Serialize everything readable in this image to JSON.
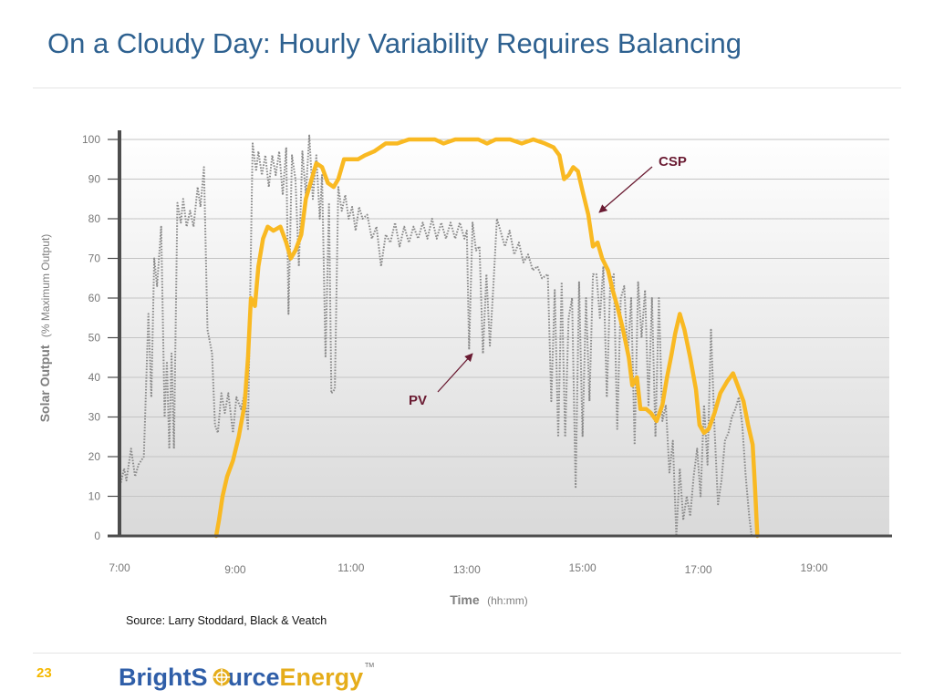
{
  "slide": {
    "title": "On a Cloudy Day: Hourly Variability Requires Balancing",
    "source_note": "Source: Larry Stoddard, Black & Veatch",
    "page_number": "23"
  },
  "logo": {
    "word_1": "BrightS",
    "word_1_b": "urce",
    "word_2": "Energy",
    "trademark": "TM",
    "color_blue": "#2f5ea8",
    "color_gold": "#e5ad1b"
  },
  "chart_data": {
    "type": "line",
    "title": "",
    "ylabel": "Solar Output",
    "ylabel_sub": "(% Maximum Output)",
    "xlabel": "Time",
    "xlabel_sub": "(hh:mm)",
    "xlim": [
      7,
      20.3
    ],
    "ylim": [
      0,
      100
    ],
    "yticks": [
      0,
      10,
      20,
      30,
      40,
      50,
      60,
      70,
      80,
      90,
      100
    ],
    "xticks": [
      {
        "value": 7,
        "label": "7:00"
      },
      {
        "value": 9,
        "label": "9:00"
      },
      {
        "value": 11,
        "label": "11:00"
      },
      {
        "value": 13,
        "label": "13:00"
      },
      {
        "value": 15,
        "label": "15:00"
      },
      {
        "value": 17,
        "label": "17:00"
      },
      {
        "value": 19,
        "label": "19:00"
      }
    ],
    "grid": true,
    "series": [
      {
        "name": "PV",
        "color": "#8a8a8a",
        "style": "dotted",
        "points": [
          [
            7.0,
            12
          ],
          [
            7.08,
            17
          ],
          [
            7.12,
            14
          ],
          [
            7.2,
            22
          ],
          [
            7.27,
            15
          ],
          [
            7.33,
            18
          ],
          [
            7.42,
            20
          ],
          [
            7.5,
            56
          ],
          [
            7.55,
            35
          ],
          [
            7.6,
            70
          ],
          [
            7.65,
            63
          ],
          [
            7.72,
            78
          ],
          [
            7.78,
            30
          ],
          [
            7.82,
            44
          ],
          [
            7.86,
            22
          ],
          [
            7.9,
            46
          ],
          [
            7.94,
            22
          ],
          [
            8.0,
            84
          ],
          [
            8.06,
            79
          ],
          [
            8.1,
            85
          ],
          [
            8.16,
            78
          ],
          [
            8.22,
            82
          ],
          [
            8.28,
            78
          ],
          [
            8.35,
            88
          ],
          [
            8.4,
            83
          ],
          [
            8.46,
            93
          ],
          [
            8.52,
            52
          ],
          [
            8.6,
            46
          ],
          [
            8.65,
            28
          ],
          [
            8.7,
            26
          ],
          [
            8.76,
            36
          ],
          [
            8.82,
            31
          ],
          [
            8.88,
            36
          ],
          [
            8.96,
            26
          ],
          [
            9.02,
            35
          ],
          [
            9.1,
            32
          ],
          [
            9.16,
            36
          ],
          [
            9.22,
            27
          ],
          [
            9.3,
            99
          ],
          [
            9.36,
            92
          ],
          [
            9.4,
            97
          ],
          [
            9.46,
            91
          ],
          [
            9.52,
            96
          ],
          [
            9.58,
            88
          ],
          [
            9.64,
            96
          ],
          [
            9.7,
            91
          ],
          [
            9.76,
            97
          ],
          [
            9.82,
            86
          ],
          [
            9.88,
            98
          ],
          [
            9.92,
            56
          ],
          [
            9.98,
            96
          ],
          [
            10.04,
            90
          ],
          [
            10.1,
            68
          ],
          [
            10.16,
            97
          ],
          [
            10.22,
            86
          ],
          [
            10.28,
            101
          ],
          [
            10.34,
            85
          ],
          [
            10.4,
            96
          ],
          [
            10.46,
            80
          ],
          [
            10.5,
            91
          ],
          [
            10.56,
            45
          ],
          [
            10.62,
            84
          ],
          [
            10.66,
            36
          ],
          [
            10.72,
            37
          ],
          [
            10.78,
            88
          ],
          [
            10.84,
            82
          ],
          [
            10.9,
            86
          ],
          [
            10.96,
            80
          ],
          [
            11.02,
            83
          ],
          [
            11.08,
            77
          ],
          [
            11.14,
            83
          ],
          [
            11.2,
            80
          ],
          [
            11.28,
            81
          ],
          [
            11.36,
            75
          ],
          [
            11.44,
            78
          ],
          [
            11.52,
            68
          ],
          [
            11.6,
            76
          ],
          [
            11.68,
            74
          ],
          [
            11.76,
            79
          ],
          [
            11.84,
            73
          ],
          [
            11.92,
            78
          ],
          [
            12.0,
            74
          ],
          [
            12.08,
            78
          ],
          [
            12.16,
            75
          ],
          [
            12.24,
            79
          ],
          [
            12.32,
            75
          ],
          [
            12.4,
            80
          ],
          [
            12.48,
            75
          ],
          [
            12.56,
            79
          ],
          [
            12.64,
            75
          ],
          [
            12.72,
            79
          ],
          [
            12.8,
            75
          ],
          [
            12.88,
            79
          ],
          [
            12.96,
            75
          ],
          [
            13.0,
            77
          ],
          [
            13.04,
            47
          ],
          [
            13.1,
            79
          ],
          [
            13.16,
            72
          ],
          [
            13.22,
            73
          ],
          [
            13.28,
            46
          ],
          [
            13.34,
            66
          ],
          [
            13.4,
            48
          ],
          [
            13.46,
            63
          ],
          [
            13.52,
            80
          ],
          [
            13.58,
            77
          ],
          [
            13.66,
            73
          ],
          [
            13.74,
            77
          ],
          [
            13.82,
            71
          ],
          [
            13.9,
            74
          ],
          [
            13.98,
            69
          ],
          [
            14.06,
            71
          ],
          [
            14.14,
            67
          ],
          [
            14.22,
            68
          ],
          [
            14.3,
            65
          ],
          [
            14.4,
            66
          ],
          [
            14.46,
            34
          ],
          [
            14.52,
            62
          ],
          [
            14.58,
            25
          ],
          [
            14.64,
            64
          ],
          [
            14.7,
            25
          ],
          [
            14.76,
            55
          ],
          [
            14.82,
            60
          ],
          [
            14.88,
            12
          ],
          [
            14.94,
            64
          ],
          [
            15.0,
            25
          ],
          [
            15.06,
            60
          ],
          [
            15.12,
            34
          ],
          [
            15.18,
            66
          ],
          [
            15.24,
            66
          ],
          [
            15.3,
            55
          ],
          [
            15.36,
            68
          ],
          [
            15.42,
            35
          ],
          [
            15.48,
            64
          ],
          [
            15.54,
            66
          ],
          [
            15.6,
            27
          ],
          [
            15.66,
            60
          ],
          [
            15.72,
            63
          ],
          [
            15.78,
            45
          ],
          [
            15.84,
            60
          ],
          [
            15.9,
            23
          ],
          [
            15.96,
            64
          ],
          [
            16.02,
            50
          ],
          [
            16.08,
            62
          ],
          [
            16.14,
            33
          ],
          [
            16.2,
            60
          ],
          [
            16.26,
            25
          ],
          [
            16.32,
            60
          ],
          [
            16.38,
            29
          ],
          [
            16.44,
            33
          ],
          [
            16.5,
            16
          ],
          [
            16.56,
            24
          ],
          [
            16.62,
            0
          ],
          [
            16.68,
            17
          ],
          [
            16.74,
            4
          ],
          [
            16.8,
            10
          ],
          [
            16.86,
            5
          ],
          [
            16.92,
            15
          ],
          [
            16.98,
            22
          ],
          [
            17.04,
            10
          ],
          [
            17.1,
            33
          ],
          [
            17.16,
            18
          ],
          [
            17.22,
            52
          ],
          [
            17.28,
            27
          ],
          [
            17.34,
            8
          ],
          [
            17.4,
            14
          ],
          [
            17.46,
            24
          ],
          [
            17.52,
            26
          ],
          [
            17.58,
            30
          ],
          [
            17.64,
            32
          ],
          [
            17.7,
            35
          ],
          [
            17.76,
            28
          ],
          [
            17.82,
            15
          ],
          [
            17.88,
            5
          ],
          [
            17.92,
            0
          ]
        ]
      },
      {
        "name": "CSP",
        "color": "#f9b922",
        "style": "solid",
        "points": [
          [
            8.67,
            0
          ],
          [
            8.72,
            4
          ],
          [
            8.78,
            10
          ],
          [
            8.86,
            15
          ],
          [
            8.96,
            19
          ],
          [
            9.06,
            25
          ],
          [
            9.16,
            33
          ],
          [
            9.22,
            45
          ],
          [
            9.27,
            60
          ],
          [
            9.34,
            58
          ],
          [
            9.4,
            68
          ],
          [
            9.48,
            75
          ],
          [
            9.56,
            78
          ],
          [
            9.66,
            77
          ],
          [
            9.78,
            78
          ],
          [
            9.88,
            74
          ],
          [
            9.96,
            70
          ],
          [
            10.04,
            72
          ],
          [
            10.14,
            76
          ],
          [
            10.22,
            85
          ],
          [
            10.32,
            90
          ],
          [
            10.4,
            94
          ],
          [
            10.5,
            93
          ],
          [
            10.6,
            89
          ],
          [
            10.7,
            88
          ],
          [
            10.78,
            90
          ],
          [
            10.88,
            95
          ],
          [
            11.0,
            95
          ],
          [
            11.12,
            95
          ],
          [
            11.24,
            96
          ],
          [
            11.4,
            97
          ],
          [
            11.6,
            99
          ],
          [
            11.8,
            99
          ],
          [
            12.0,
            100
          ],
          [
            12.2,
            100
          ],
          [
            12.45,
            100
          ],
          [
            12.6,
            99
          ],
          [
            12.8,
            100
          ],
          [
            13.0,
            100
          ],
          [
            13.2,
            100
          ],
          [
            13.35,
            99
          ],
          [
            13.5,
            100
          ],
          [
            13.75,
            100
          ],
          [
            13.95,
            99
          ],
          [
            14.15,
            100
          ],
          [
            14.35,
            99
          ],
          [
            14.5,
            98
          ],
          [
            14.6,
            96
          ],
          [
            14.68,
            90
          ],
          [
            14.76,
            91
          ],
          [
            14.84,
            93
          ],
          [
            14.92,
            92
          ],
          [
            15.0,
            87
          ],
          [
            15.1,
            81
          ],
          [
            15.18,
            73
          ],
          [
            15.26,
            74
          ],
          [
            15.34,
            70
          ],
          [
            15.44,
            67
          ],
          [
            15.52,
            62
          ],
          [
            15.6,
            58
          ],
          [
            15.7,
            52
          ],
          [
            15.8,
            45
          ],
          [
            15.86,
            38
          ],
          [
            15.94,
            40
          ],
          [
            16.0,
            32
          ],
          [
            16.1,
            32
          ],
          [
            16.18,
            31
          ],
          [
            16.28,
            29
          ],
          [
            16.38,
            33
          ],
          [
            16.46,
            40
          ],
          [
            16.54,
            46
          ],
          [
            16.6,
            51
          ],
          [
            16.68,
            56
          ],
          [
            16.76,
            52
          ],
          [
            16.86,
            45
          ],
          [
            16.96,
            37
          ],
          [
            17.02,
            28
          ],
          [
            17.1,
            26
          ],
          [
            17.18,
            27
          ],
          [
            17.28,
            31
          ],
          [
            17.38,
            36
          ],
          [
            17.5,
            39
          ],
          [
            17.6,
            41
          ],
          [
            17.68,
            38
          ],
          [
            17.78,
            34
          ],
          [
            17.86,
            28
          ],
          [
            17.94,
            23
          ],
          [
            17.98,
            12
          ],
          [
            18.02,
            0
          ]
        ]
      }
    ],
    "annotations": [
      {
        "label": "CSP",
        "color": "#6a1b32"
      },
      {
        "label": "PV",
        "color": "#6a1b32"
      }
    ]
  }
}
